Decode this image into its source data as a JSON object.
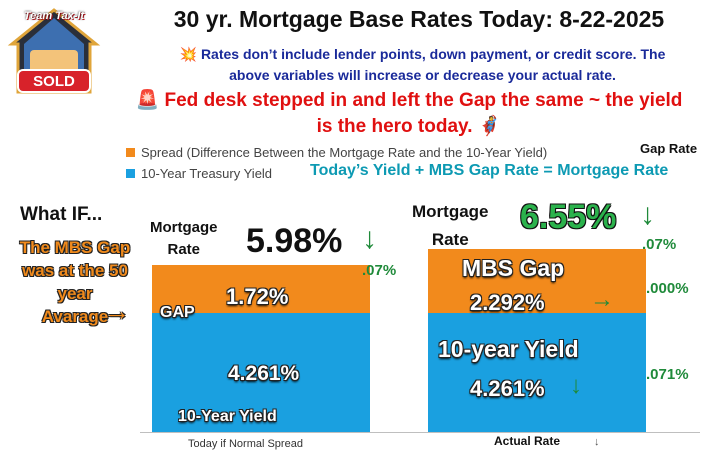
{
  "header": {
    "logo_text_top": "Team Tax-It",
    "logo_text_bottom": "SOLD",
    "title": "30 yr. Mortgage Base Rates Today: 8-22-2025",
    "note_line1": "💥 Rates don’t include lender points, down payment, or credit score. The",
    "note_line2": "above variables will increase or decrease your actual rate.",
    "alert_line1": "🚨 Fed desk stepped in and left the Gap the same ~ the yield",
    "alert_line2": "is the hero today. 🦸"
  },
  "legend": {
    "spread": "Spread (Difference Between the Mortgage Rate and the 10-Year Yield)",
    "treasury": "10-Year Treasury Yield"
  },
  "annotations": {
    "gap_rate_header": "Gap Rate",
    "formula": "Today’s  Yield +  MBS Gap Rate = Mortgage Rate",
    "what_if": "What IF...",
    "mbs_note": [
      "The MBS Gap",
      "was at the 50",
      "year",
      "Avarage"
    ],
    "arrow_right": "→",
    "left_mortgage_label": [
      "Mortgage",
      "Rate"
    ],
    "left_mortgage_rate": "5.98%",
    "left_change": ".07%",
    "right_mortgage_label": [
      "Mortgage",
      "Rate"
    ],
    "right_mortgage_rate": "6.55%",
    "right_rate_change": ".07%",
    "gap_change": ".000%",
    "yield_change": ".071%",
    "down_arrow": "↓"
  },
  "chart_data": {
    "type": "bar",
    "stacked": true,
    "categories": [
      "Today if Normal Spread",
      "Actual Rate"
    ],
    "series": [
      {
        "name": "10-Year Treasury Yield",
        "values": [
          4.261,
          4.261
        ],
        "color": "#1aa0e0"
      },
      {
        "name": "Spread (Difference Between the Mortgage Rate and the 10-Year Yield)",
        "values": [
          1.72,
          2.292
        ],
        "color": "#f28a1c"
      }
    ],
    "ylim": [
      0,
      6.6
    ],
    "grid": false,
    "legend_position": "top-left",
    "bar_labels": {
      "left_spread": "1.72%",
      "left_spread_tag": "GAP",
      "left_yield": "4.261%",
      "left_yield_tag": "10-Year Yield",
      "right_spread_title": "MBS Gap",
      "right_spread": "2.292%",
      "right_yield_title": "10-year Yield",
      "right_yield": "4.261%"
    }
  }
}
